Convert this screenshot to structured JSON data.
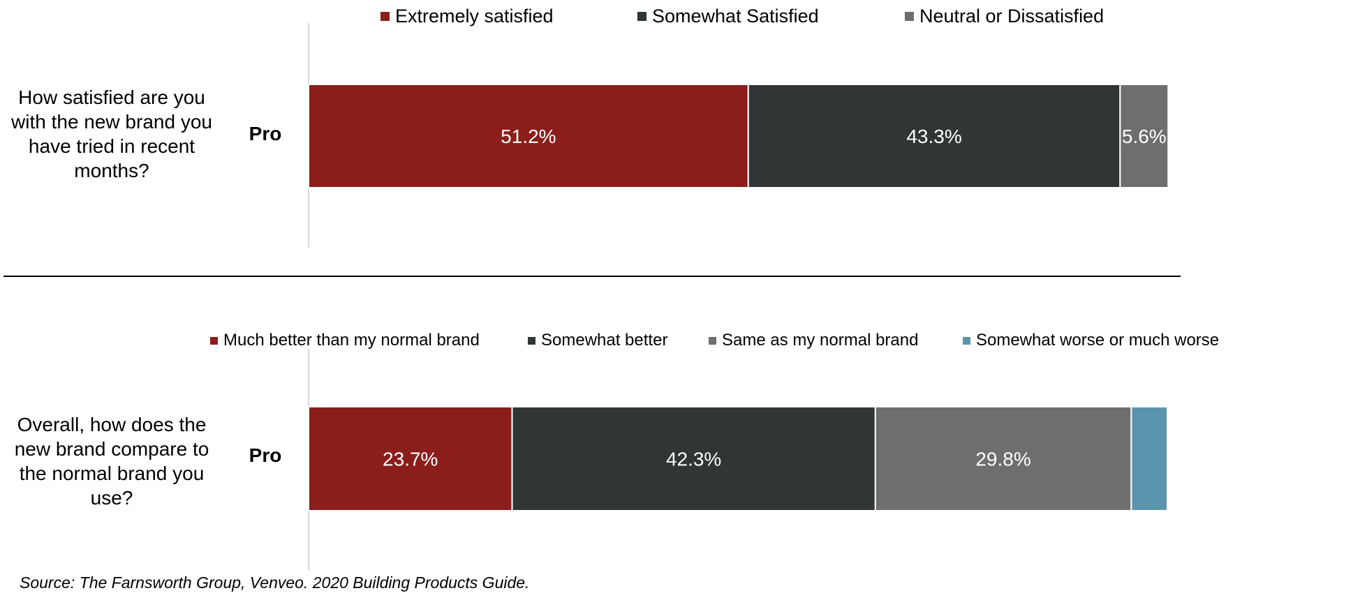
{
  "chart_data": [
    {
      "type": "bar",
      "orientation": "horizontal",
      "stacked": true,
      "question": "How satisfied are you with the new brand you have tried in recent months?",
      "categories": [
        "Pro"
      ],
      "series": [
        {
          "name": "Extremely satisfied",
          "values": [
            51.2
          ],
          "color": "#8B1E1B",
          "label": "51.2%"
        },
        {
          "name": "Somewhat Satisfied",
          "values": [
            43.3
          ],
          "color": "#303535",
          "label": "43.3%"
        },
        {
          "name": "Neutral or Dissatisfied",
          "values": [
            5.6
          ],
          "color": "#6E6E6E",
          "label": "5.6%"
        }
      ],
      "legend_position": "top",
      "xlim": [
        0,
        100
      ]
    },
    {
      "type": "bar",
      "orientation": "horizontal",
      "stacked": true,
      "question": "Overall, how does the new brand compare to the normal brand you use?",
      "categories": [
        "Pro"
      ],
      "series": [
        {
          "name": "Much better than my normal brand",
          "values": [
            23.7
          ],
          "color": "#8B1E1B",
          "label": "23.7%"
        },
        {
          "name": "Somewhat better",
          "values": [
            42.3
          ],
          "color": "#303535",
          "label": "42.3%"
        },
        {
          "name": "Same as my normal brand",
          "values": [
            29.8
          ],
          "color": "#6E6E6E",
          "label": "29.8%"
        },
        {
          "name": "Somewhat worse or much worse",
          "values": [
            4.2
          ],
          "color": "#5B95AD",
          "label": ""
        }
      ],
      "legend_position": "top",
      "xlim": [
        0,
        100
      ]
    }
  ],
  "source": "Source:  The Farnsworth Group, Venveo.  2020 Building Products Guide."
}
